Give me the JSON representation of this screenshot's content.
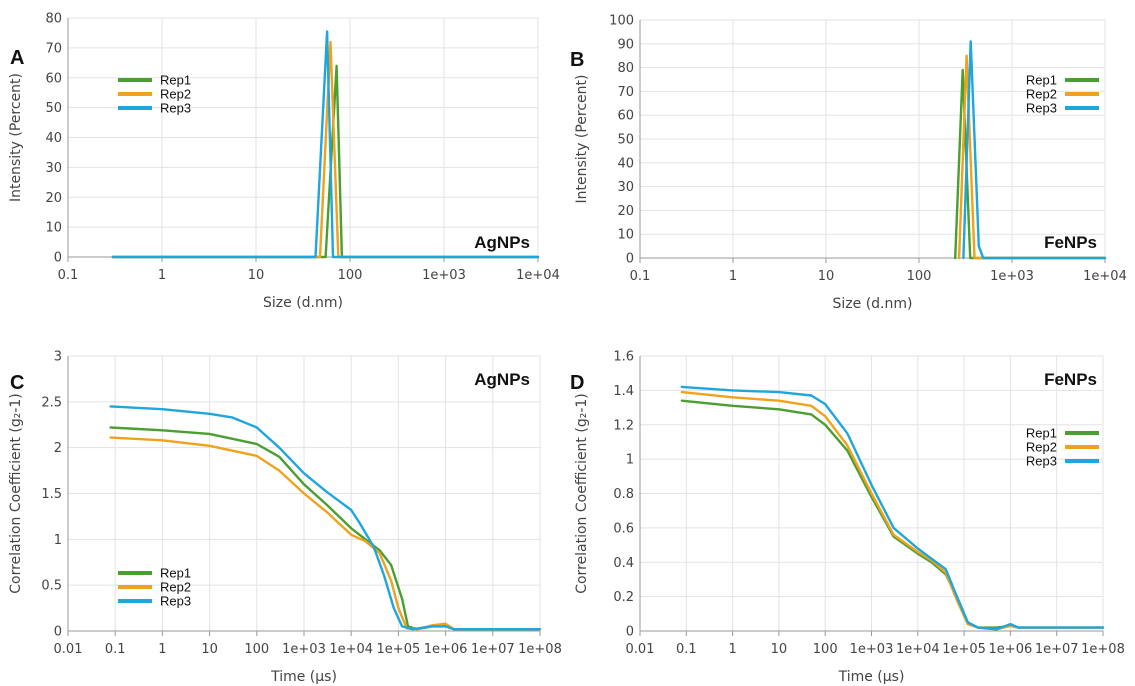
{
  "series_colors": {
    "Rep1": "#4a9e32",
    "Rep2": "#f0a21c",
    "Rep3": "#1fa6dc"
  },
  "chart_data": [
    {
      "id": "A",
      "panel_label": "A",
      "tag": "AgNPs",
      "type": "line",
      "xlabel": "Size (d.nm)",
      "ylabel": "Intensity (Percent)",
      "xscale": "log",
      "xlim": [
        0.1,
        10000
      ],
      "ylim": [
        0,
        80
      ],
      "xticks": [
        0.1,
        1,
        10,
        100,
        1000,
        10000
      ],
      "xtick_labels": [
        "0.1",
        "1",
        "10",
        "100",
        "1e+03",
        "1e+04"
      ],
      "yticks": [
        0,
        10,
        20,
        30,
        40,
        50,
        60,
        70,
        80
      ],
      "ytick_labels": [
        "0",
        "10",
        "20",
        "30",
        "40",
        "50",
        "60",
        "70",
        "80"
      ],
      "grid": true,
      "legend": "upper-left",
      "series": [
        {
          "name": "Rep1",
          "x": [
            0.3,
            55,
            72,
            82,
            10000
          ],
          "y": [
            0,
            0,
            64,
            0,
            0
          ]
        },
        {
          "name": "Rep2",
          "x": [
            0.3,
            48,
            62,
            75,
            10000
          ],
          "y": [
            0,
            0,
            72,
            0,
            0
          ]
        },
        {
          "name": "Rep3",
          "x": [
            0.3,
            43,
            57,
            66,
            10000
          ],
          "y": [
            0,
            0,
            75.5,
            0,
            0
          ]
        }
      ]
    },
    {
      "id": "B",
      "panel_label": "B",
      "tag": "FeNPs",
      "type": "line",
      "xlabel": "Size (d.nm)",
      "ylabel": "Intensity (Percent)",
      "xscale": "log",
      "xlim": [
        0.1,
        10000
      ],
      "ylim": [
        0,
        100
      ],
      "xticks": [
        0.1,
        1,
        10,
        100,
        1000,
        10000
      ],
      "xtick_labels": [
        "0.1",
        "1",
        "10",
        "100",
        "1e+03",
        "1e+04"
      ],
      "yticks": [
        0,
        10,
        20,
        30,
        40,
        50,
        60,
        70,
        80,
        90,
        100
      ],
      "ytick_labels": [
        "0",
        "10",
        "20",
        "30",
        "40",
        "50",
        "60",
        "70",
        "80",
        "90",
        "100"
      ],
      "grid": true,
      "legend": "upper-right",
      "series": [
        {
          "name": "Rep1",
          "x": [
            245,
            295,
            355,
            10000
          ],
          "y": [
            0,
            79,
            0,
            0
          ]
        },
        {
          "name": "Rep2",
          "x": [
            270,
            325,
            395,
            10000
          ],
          "y": [
            0,
            85,
            0,
            0
          ]
        },
        {
          "name": "Rep3",
          "x": [
            300,
            360,
            440,
            490,
            10000
          ],
          "y": [
            0,
            91,
            5,
            0,
            0
          ]
        }
      ]
    },
    {
      "id": "C",
      "panel_label": "C",
      "tag": "AgNPs",
      "type": "line",
      "xlabel": "Time (µs)",
      "ylabel": "Correlation Coefficient (g₂-1)",
      "xscale": "log",
      "xlim": [
        0.01,
        100000000
      ],
      "ylim": [
        0,
        3
      ],
      "xticks": [
        0.01,
        0.1,
        1,
        10,
        100,
        1000,
        10000,
        100000,
        1000000,
        10000000,
        100000000
      ],
      "xtick_labels": [
        "0.01",
        "0.1",
        "1",
        "10",
        "100",
        "1e+03",
        "1e+04",
        "1e+05",
        "1e+06",
        "1e+07",
        "1e+08"
      ],
      "yticks": [
        0,
        0.5,
        1,
        1.5,
        2,
        2.5,
        3
      ],
      "ytick_labels": [
        "0",
        "0.5",
        "1",
        "1.5",
        "2",
        "2.5",
        "3"
      ],
      "grid": true,
      "legend": "lower-left",
      "series": [
        {
          "name": "Rep1",
          "x": [
            0.08,
            1,
            10,
            100,
            300,
            1000,
            3000,
            10000,
            20000,
            40000,
            70000,
            120000,
            160000,
            250000,
            500000,
            1000000,
            1500000,
            100000000
          ],
          "y": [
            2.22,
            2.19,
            2.15,
            2.04,
            1.9,
            1.6,
            1.38,
            1.12,
            1.0,
            0.88,
            0.72,
            0.35,
            0.05,
            0.02,
            0.05,
            0.06,
            0.02,
            0.02
          ]
        },
        {
          "name": "Rep2",
          "x": [
            0.08,
            1,
            10,
            100,
            300,
            1000,
            3000,
            10000,
            20000,
            40000,
            70000,
            100000,
            150000,
            250000,
            500000,
            1000000,
            1500000,
            100000000
          ],
          "y": [
            2.11,
            2.08,
            2.02,
            1.91,
            1.75,
            1.5,
            1.3,
            1.05,
            0.98,
            0.85,
            0.55,
            0.25,
            0.03,
            0.02,
            0.06,
            0.08,
            0.02,
            0.02
          ]
        },
        {
          "name": "Rep3",
          "x": [
            0.08,
            1,
            10,
            30,
            100,
            300,
            1000,
            3000,
            10000,
            15000,
            30000,
            50000,
            80000,
            120000,
            200000,
            500000,
            1000000,
            1500000,
            100000000
          ],
          "y": [
            2.45,
            2.42,
            2.37,
            2.33,
            2.22,
            2.0,
            1.72,
            1.52,
            1.32,
            1.18,
            0.92,
            0.6,
            0.25,
            0.05,
            0.02,
            0.05,
            0.05,
            0.02,
            0.02
          ]
        }
      ]
    },
    {
      "id": "D",
      "panel_label": "D",
      "tag": "FeNPs",
      "type": "line",
      "xlabel": "Time (µs)",
      "ylabel": "Correlation Coefficient (g₂-1)",
      "xscale": "log",
      "xlim": [
        0.01,
        100000000
      ],
      "ylim": [
        0,
        1.6
      ],
      "xticks": [
        0.01,
        0.1,
        1,
        10,
        100,
        1000,
        10000,
        100000,
        1000000,
        10000000,
        100000000
      ],
      "xtick_labels": [
        "0.01",
        "0.1",
        "1",
        "10",
        "100",
        "1e+03",
        "1e+04",
        "1e+05",
        "1e+06",
        "1e+07",
        "1e+08"
      ],
      "yticks": [
        0,
        0.2,
        0.4,
        0.6,
        0.8,
        1,
        1.2,
        1.4,
        1.6
      ],
      "ytick_labels": [
        "0",
        "0.2",
        "0.4",
        "0.6",
        "0.8",
        "1",
        "1.2",
        "1.4",
        "1.6"
      ],
      "grid": true,
      "legend": "right",
      "series": [
        {
          "name": "Rep1",
          "x": [
            0.08,
            1,
            10,
            50,
            100,
            300,
            1000,
            3000,
            10000,
            20000,
            40000,
            70000,
            120000,
            200000,
            500000,
            1000000,
            1500000,
            100000000
          ],
          "y": [
            1.34,
            1.31,
            1.29,
            1.26,
            1.2,
            1.05,
            0.78,
            0.55,
            0.45,
            0.4,
            0.33,
            0.2,
            0.05,
            0.02,
            0.02,
            0.03,
            0.02,
            0.02
          ]
        },
        {
          "name": "Rep2",
          "x": [
            0.08,
            1,
            10,
            50,
            100,
            300,
            1000,
            3000,
            10000,
            20000,
            40000,
            70000,
            120000,
            200000,
            500000,
            1000000,
            1500000,
            100000000
          ],
          "y": [
            1.39,
            1.36,
            1.34,
            1.31,
            1.25,
            1.08,
            0.8,
            0.56,
            0.46,
            0.41,
            0.34,
            0.18,
            0.04,
            0.02,
            0.01,
            0.03,
            0.02,
            0.02
          ]
        },
        {
          "name": "Rep3",
          "x": [
            0.08,
            1,
            10,
            50,
            100,
            300,
            1000,
            3000,
            10000,
            20000,
            40000,
            70000,
            120000,
            200000,
            500000,
            1000000,
            1500000,
            100000000
          ],
          "y": [
            1.42,
            1.4,
            1.39,
            1.37,
            1.32,
            1.15,
            0.85,
            0.6,
            0.48,
            0.42,
            0.36,
            0.2,
            0.05,
            0.02,
            0.01,
            0.04,
            0.02,
            0.02
          ]
        }
      ]
    }
  ]
}
